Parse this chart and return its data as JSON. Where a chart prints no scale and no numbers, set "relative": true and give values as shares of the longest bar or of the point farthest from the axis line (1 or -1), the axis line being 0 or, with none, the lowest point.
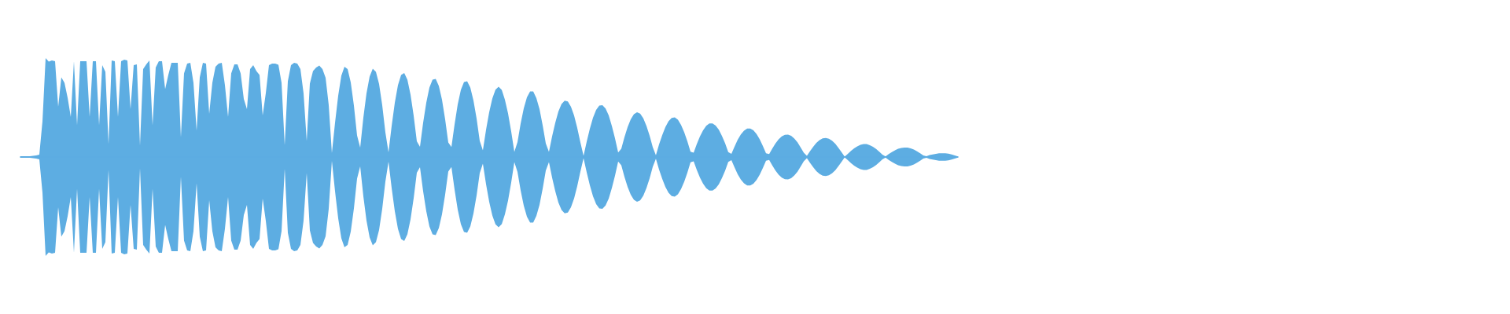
{
  "chart_data": {
    "type": "area",
    "relative": true,
    "tick_labels": false,
    "categories": [
      null,
      null,
      null,
      null,
      null,
      null,
      null,
      null,
      null,
      null,
      null,
      null,
      null,
      null,
      null,
      null,
      null,
      null,
      null,
      null,
      null,
      null,
      null,
      null,
      null,
      null,
      null,
      null,
      null,
      null,
      null,
      null,
      null,
      null,
      null,
      null,
      null,
      null,
      null,
      null,
      null,
      null,
      null,
      null,
      null,
      null,
      null,
      null,
      null,
      null,
      null,
      null,
      null,
      null,
      null,
      null,
      null,
      null,
      null,
      null,
      null,
      null,
      null,
      null,
      null,
      null,
      null,
      null,
      null,
      null,
      null,
      null,
      null,
      null,
      null,
      null,
      null,
      null,
      null,
      null,
      null,
      null,
      null,
      null,
      null,
      null,
      null,
      null,
      null,
      null,
      null,
      null,
      null,
      null,
      null,
      null,
      null,
      null,
      null,
      null,
      null,
      null,
      null,
      null,
      null,
      null,
      null,
      null,
      null,
      null,
      null,
      null,
      null,
      null,
      null,
      null,
      null,
      null,
      null,
      null,
      null,
      null,
      null,
      null,
      null,
      null,
      null,
      null,
      null,
      null,
      null,
      null,
      null,
      null,
      null,
      null,
      null,
      null,
      null,
      null,
      null,
      null,
      null,
      null,
      null,
      null,
      null,
      null,
      null,
      null,
      null,
      null,
      null,
      null,
      null,
      null,
      null,
      null,
      null,
      null,
      null,
      null,
      null,
      null,
      null,
      null,
      null,
      null,
      null,
      null,
      null,
      null,
      null,
      null,
      null,
      null,
      null,
      null,
      null,
      null,
      null,
      null,
      null,
      null,
      null,
      null,
      null,
      null,
      null,
      null,
      null,
      null,
      null,
      null,
      null,
      null,
      null,
      null,
      null,
      null,
      null,
      null,
      null,
      null,
      null,
      null,
      null,
      null,
      null,
      null,
      null,
      null,
      null,
      null,
      null,
      null,
      null,
      null,
      null,
      null,
      null,
      null,
      null,
      null,
      null,
      null,
      null,
      null,
      null,
      null,
      null,
      null,
      null,
      null,
      null,
      null,
      null,
      null,
      null,
      null,
      null,
      null,
      null,
      null,
      null,
      null,
      null,
      null,
      null,
      null,
      null,
      null,
      null,
      null,
      null,
      null,
      null,
      null,
      null,
      null,
      null,
      null,
      null,
      null,
      null,
      null,
      null,
      null,
      null,
      null,
      null,
      null,
      null,
      null,
      null,
      null,
      null,
      null,
      null,
      null,
      null,
      null,
      null,
      null,
      null,
      null,
      null,
      null,
      null,
      null,
      null,
      null,
      null,
      null,
      null,
      null,
      null,
      null,
      null
    ],
    "series": [
      {
        "color": "#5dade2",
        "values": [
          0.008,
          0.008,
          0.008,
          0.008,
          0.012,
          0.016,
          0.024,
          0.362,
          1.0,
          0.964,
          0.976,
          0.968,
          0.508,
          0.806,
          0.75,
          0.6,
          0.404,
          0.968,
          0.322,
          0.968,
          0.968,
          0.968,
          0.404,
          0.968,
          0.968,
          0.322,
          0.928,
          0.862,
          0.13,
          0.976,
          0.968,
          0.404,
          0.968,
          0.984,
          0.976,
          0.484,
          0.928,
          0.936,
          0.116,
          0.888,
          0.936,
          0.976,
          0.322,
          0.904,
          0.968,
          0.968,
          0.686,
          0.83,
          0.952,
          0.952,
          0.952,
          0.198,
          0.846,
          0.944,
          0.952,
          0.75,
          0.266,
          0.806,
          0.952,
          0.944,
          0.436,
          0.75,
          0.912,
          0.944,
          0.952,
          0.726,
          0.404,
          0.846,
          0.936,
          0.936,
          0.846,
          0.588,
          0.484,
          0.888,
          0.928,
          0.87,
          0.83,
          0.42,
          0.646,
          0.928,
          0.944,
          0.944,
          0.932,
          0.75,
          0.12,
          0.766,
          0.928,
          0.952,
          0.944,
          0.888,
          0.642,
          0.162,
          0.742,
          0.87,
          0.904,
          0.924,
          0.888,
          0.802,
          0.524,
          0.04,
          0.346,
          0.62,
          0.822,
          0.912,
          0.888,
          0.754,
          0.52,
          0.218,
          0.096,
          0.396,
          0.642,
          0.814,
          0.892,
          0.862,
          0.738,
          0.524,
          0.25,
          0.048,
          0.314,
          0.548,
          0.726,
          0.83,
          0.85,
          0.782,
          0.63,
          0.416,
          0.158,
          0.104,
          0.346,
          0.548,
          0.702,
          0.782,
          0.79,
          0.718,
          0.58,
          0.38,
          0.146,
          0.102,
          0.33,
          0.532,
          0.678,
          0.758,
          0.766,
          0.702,
          0.572,
          0.388,
          0.162,
          0.068,
          0.274,
          0.452,
          0.592,
          0.68,
          0.71,
          0.678,
          0.58,
          0.44,
          0.258,
          0.052,
          0.15,
          0.338,
          0.492,
          0.604,
          0.662,
          0.662,
          0.596,
          0.484,
          0.322,
          0.136,
          0.052,
          0.208,
          0.346,
          0.46,
          0.536,
          0.57,
          0.562,
          0.508,
          0.418,
          0.294,
          0.146,
          0.012,
          0.154,
          0.286,
          0.396,
          0.476,
          0.52,
          0.524,
          0.49,
          0.42,
          0.314,
          0.188,
          0.046,
          0.084,
          0.2,
          0.302,
          0.38,
          0.432,
          0.452,
          0.438,
          0.39,
          0.314,
          0.216,
          0.1,
          0.018,
          0.126,
          0.22,
          0.302,
          0.362,
          0.394,
          0.4,
          0.376,
          0.324,
          0.25,
          0.158,
          0.054,
          0.044,
          0.13,
          0.208,
          0.27,
          0.316,
          0.34,
          0.34,
          0.318,
          0.276,
          0.212,
          0.138,
          0.05,
          0.032,
          0.106,
          0.174,
          0.228,
          0.266,
          0.288,
          0.288,
          0.27,
          0.232,
          0.178,
          0.112,
          0.038,
          0.03,
          0.086,
          0.136,
          0.178,
          0.208,
          0.224,
          0.226,
          0.214,
          0.186,
          0.148,
          0.098,
          0.044,
          0.012,
          0.06,
          0.104,
          0.142,
          0.17,
          0.188,
          0.192,
          0.184,
          0.164,
          0.134,
          0.094,
          0.05,
          0.004,
          0.032,
          0.062,
          0.088,
          0.108,
          0.124,
          0.13,
          0.13,
          0.12,
          0.104,
          0.082,
          0.054,
          0.024,
          0.006,
          0.03,
          0.05,
          0.068,
          0.084,
          0.092,
          0.096,
          0.096,
          0.088,
          0.076,
          0.058,
          0.038,
          0.016,
          0.008,
          0.02,
          0.026,
          0.032,
          0.038,
          0.038,
          0.038,
          0.034,
          0.026,
          0.016,
          0.006
        ]
      },
      {
        "color": "#5dade2",
        "values": [
          -0.008,
          -0.008,
          -0.008,
          -0.008,
          -0.012,
          -0.016,
          -0.024,
          -0.362,
          -1.0,
          -0.964,
          -0.976,
          -0.968,
          -0.508,
          -0.806,
          -0.75,
          -0.6,
          -0.404,
          -0.968,
          -0.322,
          -0.968,
          -0.968,
          -0.968,
          -0.404,
          -0.968,
          -0.968,
          -0.322,
          -0.928,
          -0.862,
          -0.13,
          -0.976,
          -0.968,
          -0.404,
          -0.968,
          -0.984,
          -0.976,
          -0.484,
          -0.928,
          -0.936,
          -0.116,
          -0.888,
          -0.936,
          -0.976,
          -0.322,
          -0.904,
          -0.968,
          -0.968,
          -0.686,
          -0.83,
          -0.952,
          -0.952,
          -0.952,
          -0.198,
          -0.846,
          -0.944,
          -0.952,
          -0.75,
          -0.266,
          -0.806,
          -0.952,
          -0.944,
          -0.436,
          -0.75,
          -0.912,
          -0.944,
          -0.952,
          -0.726,
          -0.404,
          -0.846,
          -0.936,
          -0.936,
          -0.846,
          -0.588,
          -0.484,
          -0.888,
          -0.928,
          -0.87,
          -0.83,
          -0.42,
          -0.646,
          -0.928,
          -0.944,
          -0.944,
          -0.932,
          -0.75,
          -0.12,
          -0.766,
          -0.928,
          -0.952,
          -0.944,
          -0.888,
          -0.642,
          -0.162,
          -0.742,
          -0.87,
          -0.904,
          -0.924,
          -0.888,
          -0.802,
          -0.524,
          -0.04,
          -0.346,
          -0.62,
          -0.822,
          -0.912,
          -0.888,
          -0.754,
          -0.52,
          -0.218,
          -0.096,
          -0.396,
          -0.642,
          -0.814,
          -0.892,
          -0.862,
          -0.738,
          -0.524,
          -0.25,
          -0.048,
          -0.314,
          -0.548,
          -0.726,
          -0.83,
          -0.85,
          -0.782,
          -0.63,
          -0.416,
          -0.158,
          -0.104,
          -0.346,
          -0.548,
          -0.702,
          -0.782,
          -0.79,
          -0.718,
          -0.58,
          -0.38,
          -0.146,
          -0.102,
          -0.33,
          -0.532,
          -0.678,
          -0.758,
          -0.766,
          -0.702,
          -0.572,
          -0.388,
          -0.162,
          -0.068,
          -0.274,
          -0.452,
          -0.592,
          -0.68,
          -0.71,
          -0.678,
          -0.58,
          -0.44,
          -0.258,
          -0.052,
          -0.15,
          -0.338,
          -0.492,
          -0.604,
          -0.662,
          -0.662,
          -0.596,
          -0.484,
          -0.322,
          -0.136,
          -0.052,
          -0.208,
          -0.346,
          -0.46,
          -0.536,
          -0.57,
          -0.562,
          -0.508,
          -0.418,
          -0.294,
          -0.146,
          -0.012,
          -0.154,
          -0.286,
          -0.396,
          -0.476,
          -0.52,
          -0.524,
          -0.49,
          -0.42,
          -0.314,
          -0.188,
          -0.046,
          -0.084,
          -0.2,
          -0.302,
          -0.38,
          -0.432,
          -0.452,
          -0.438,
          -0.39,
          -0.314,
          -0.216,
          -0.1,
          -0.018,
          -0.126,
          -0.22,
          -0.302,
          -0.362,
          -0.394,
          -0.4,
          -0.376,
          -0.324,
          -0.25,
          -0.158,
          -0.054,
          -0.044,
          -0.13,
          -0.208,
          -0.27,
          -0.316,
          -0.34,
          -0.34,
          -0.318,
          -0.276,
          -0.212,
          -0.138,
          -0.05,
          -0.032,
          -0.106,
          -0.174,
          -0.228,
          -0.266,
          -0.288,
          -0.288,
          -0.27,
          -0.232,
          -0.178,
          -0.112,
          -0.038,
          -0.03,
          -0.086,
          -0.136,
          -0.178,
          -0.208,
          -0.224,
          -0.226,
          -0.214,
          -0.186,
          -0.148,
          -0.098,
          -0.044,
          -0.012,
          -0.06,
          -0.104,
          -0.142,
          -0.17,
          -0.188,
          -0.192,
          -0.184,
          -0.164,
          -0.134,
          -0.094,
          -0.05,
          -0.004,
          -0.032,
          -0.062,
          -0.088,
          -0.108,
          -0.124,
          -0.13,
          -0.13,
          -0.12,
          -0.104,
          -0.082,
          -0.054,
          -0.024,
          -0.006,
          -0.03,
          -0.05,
          -0.068,
          -0.084,
          -0.092,
          -0.096,
          -0.096,
          -0.088,
          -0.076,
          -0.058,
          -0.038,
          -0.016,
          -0.008,
          -0.02,
          -0.026,
          -0.032,
          -0.038,
          -0.038,
          -0.038,
          -0.034,
          -0.026,
          -0.016,
          -0.006
        ]
      }
    ]
  }
}
